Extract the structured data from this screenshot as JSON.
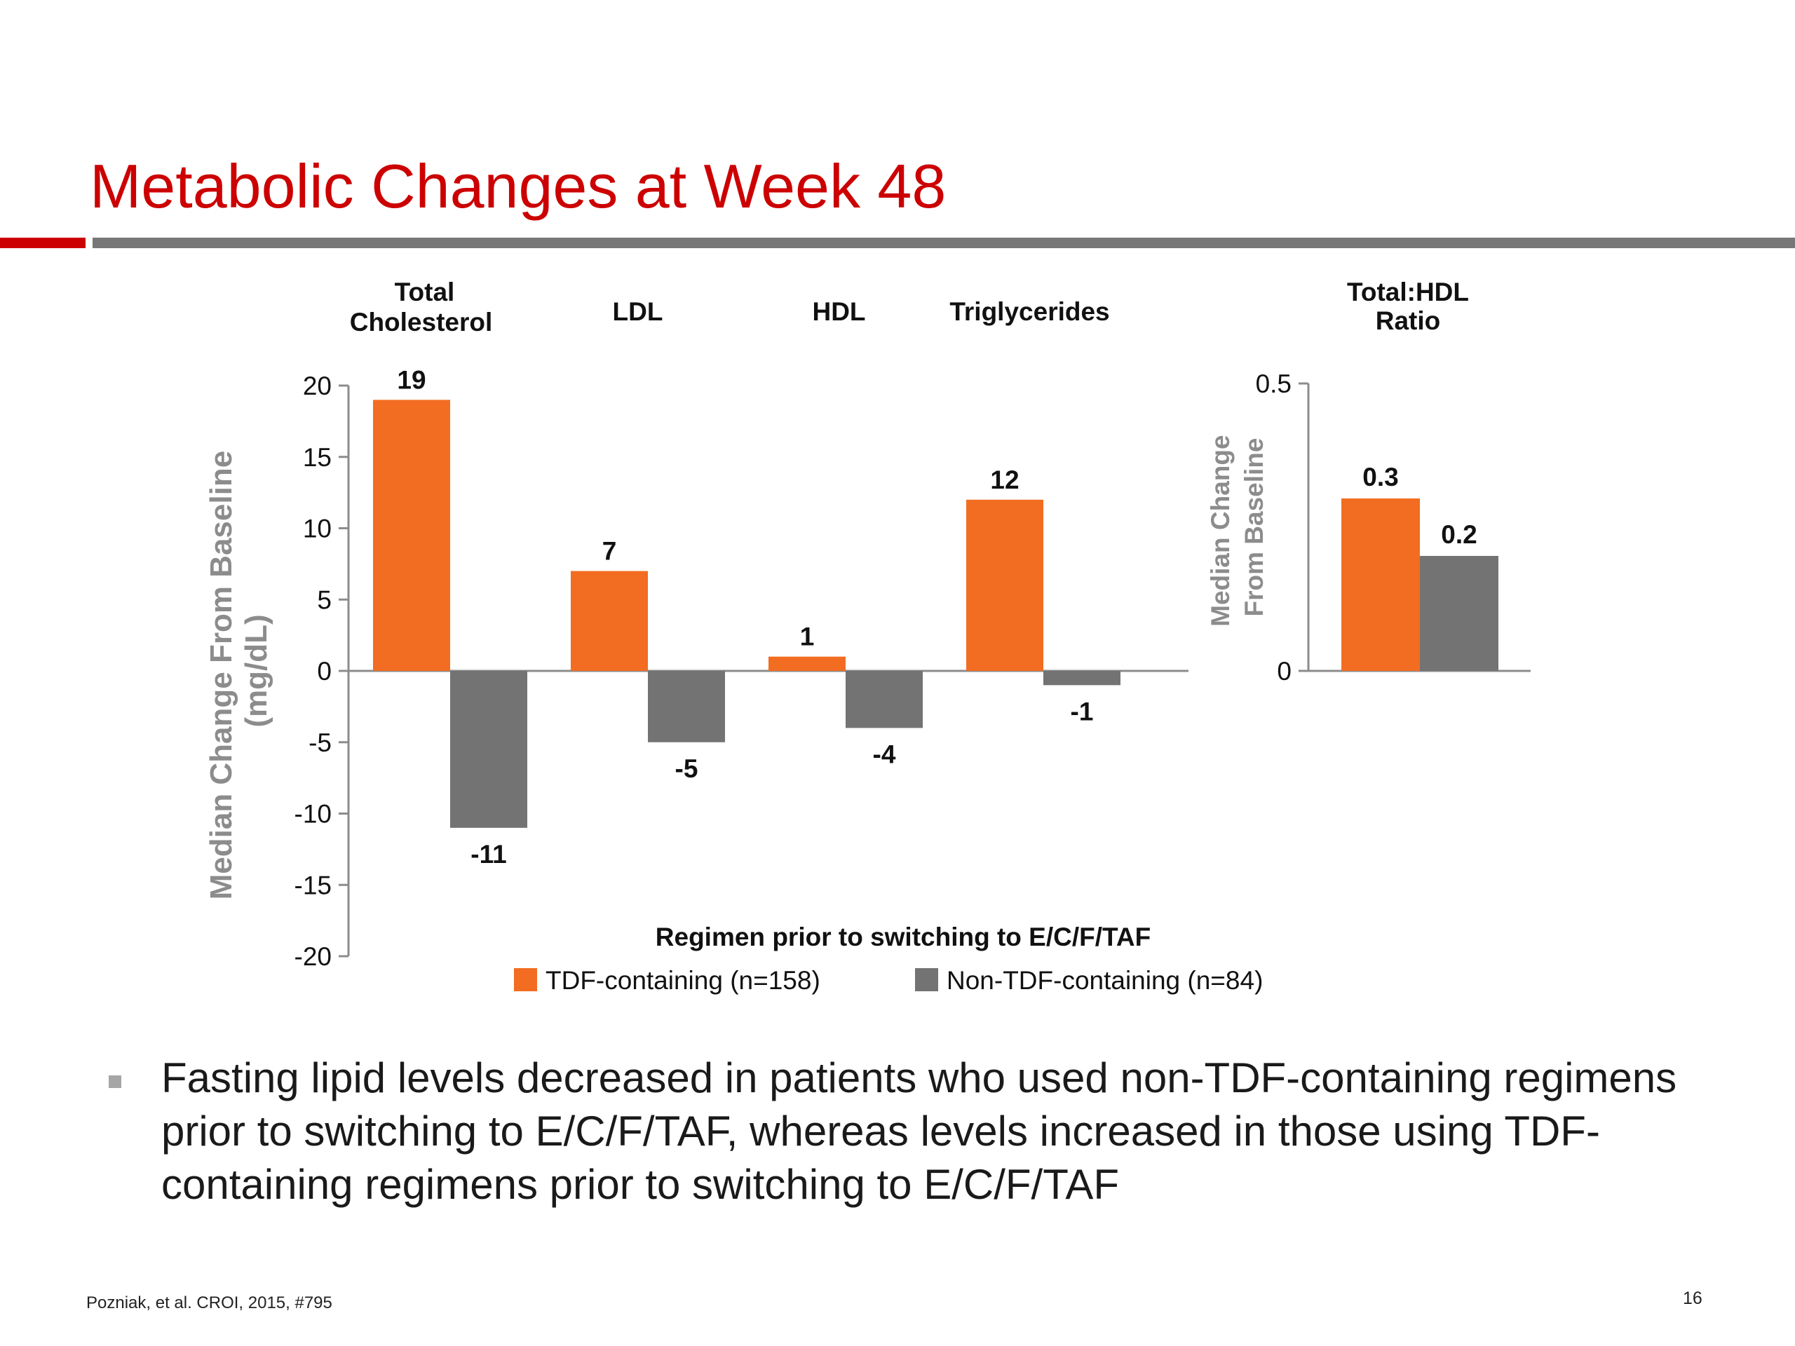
{
  "slide": {
    "title": "Metabolic Changes at Week 48",
    "title_color": "#cc0000",
    "rule_accent_color": "#cc0000",
    "rule_main_color": "#777777",
    "bullet": "Fasting lipid levels decreased in patients who used non-TDF-containing regimens prior to switching to E/C/F/TAF, whereas levels increased in those using TDF-containing regimens prior to switching to E/C/F/TAF",
    "bullet_marker_color": "#a6a6a6",
    "citation": "Pozniak, et al. CROI, 2015, #795",
    "page_number": "16"
  },
  "colors": {
    "tdf": "#f26d21",
    "non_tdf": "#737373",
    "axis_title": "#8c8c8c",
    "axis": "#8c8c8c"
  },
  "chart_data": [
    {
      "type": "bar",
      "categories": [
        "Total Cholesterol",
        "LDL",
        "HDL",
        "Triglycerides"
      ],
      "series": [
        {
          "name": "TDF-containing (n=158)",
          "values": [
            19,
            7,
            1,
            12
          ]
        },
        {
          "name": "Non-TDF-containing (n=84)",
          "values": [
            -11,
            -5,
            -4,
            -1
          ]
        }
      ],
      "ylabel": "Median Change From Baseline (mg/dL)",
      "ylim": [
        -20,
        20
      ],
      "yticks": [
        20,
        15,
        10,
        5,
        0,
        -5,
        -10,
        -15,
        -20
      ],
      "xlabel": "Regimen prior to switching to E/C/F/TAF",
      "legend_position": "bottom",
      "grid": false
    },
    {
      "type": "bar",
      "categories": [
        "Total:HDL Ratio"
      ],
      "series": [
        {
          "name": "TDF-containing (n=158)",
          "values": [
            0.3
          ]
        },
        {
          "name": "Non-TDF-containing (n=84)",
          "values": [
            0.2
          ]
        }
      ],
      "ylabel": "Median Change From Baseline",
      "ylim": [
        0,
        0.5
      ],
      "yticks": [
        0.5,
        0
      ],
      "grid": false
    }
  ]
}
